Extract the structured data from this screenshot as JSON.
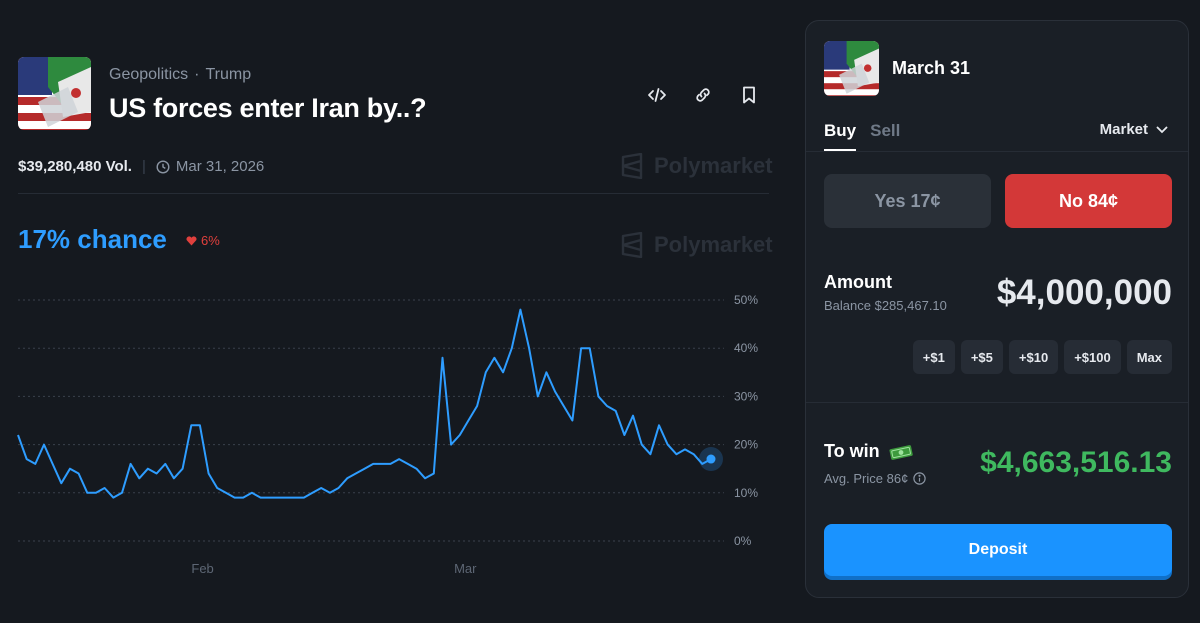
{
  "market": {
    "breadcrumb": [
      "Geopolitics",
      "Trump"
    ],
    "breadcrumb_sep": "·",
    "title": "US forces enter Iran by..?",
    "volume": "$39,280,480 Vol.",
    "end_date": "Mar 31, 2026",
    "watermark": "Polymarket",
    "chance": "17% chance",
    "change": "6%",
    "change_direction": "down"
  },
  "header_icons": [
    "embed-code-icon",
    "link-icon",
    "bookmark-icon"
  ],
  "chart_data": {
    "type": "line",
    "series": [
      {
        "color": "#2e9dff",
        "values": [
          22,
          17,
          16,
          20,
          16,
          12,
          15,
          14,
          10,
          10,
          11,
          9,
          10,
          16,
          13,
          15,
          14,
          16,
          13,
          15,
          24,
          24,
          14,
          11,
          10,
          9,
          9,
          10,
          9,
          9,
          9,
          9,
          9,
          9,
          10,
          11,
          10,
          11,
          13,
          14,
          15,
          16,
          16,
          16,
          17,
          16,
          15,
          13,
          14,
          38,
          20,
          22,
          25,
          28,
          35,
          38,
          35,
          40,
          48,
          40,
          30,
          35,
          31,
          28,
          25,
          40,
          40,
          30,
          28,
          27,
          22,
          26,
          20,
          18,
          24,
          20,
          18,
          19,
          18,
          16,
          17
        ]
      }
    ],
    "x_labels": [
      "Feb",
      "Mar"
    ],
    "x_label_positions": [
      0.26,
      0.63
    ],
    "y_ticks": [
      "50%",
      "40%",
      "30%",
      "20%",
      "10%",
      "0%"
    ],
    "ylim": [
      0,
      50
    ],
    "grid": true,
    "last_value": 17
  },
  "trade": {
    "title": "March 31",
    "tabs": [
      "Buy",
      "Sell"
    ],
    "active_tab": "Buy",
    "order_type": "Market",
    "yes_label": "Yes 17¢",
    "no_label": "No 84¢",
    "selected_outcome": "No",
    "amount_label": "Amount",
    "balance": "Balance $285,467.10",
    "amount": "$4,000,000",
    "quick_amounts": [
      "+$1",
      "+$5",
      "+$10",
      "+$100",
      "Max"
    ],
    "to_win_label": "To win",
    "avg_price": "Avg. Price 86¢",
    "payout": "$4,663,516.13",
    "deposit_label": "Deposit"
  },
  "colors": {
    "background": "#15191f",
    "panel": "#1a1f26",
    "accent_blue": "#2e9dff",
    "no_red": "#d33838",
    "win_green": "#3fb95f"
  }
}
